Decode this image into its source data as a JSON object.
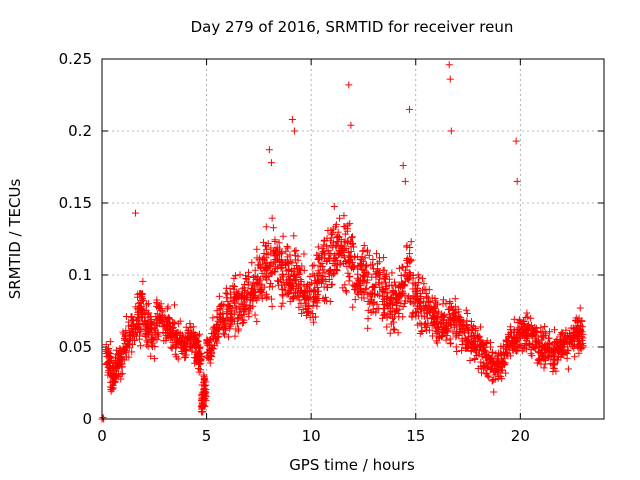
{
  "chart_data": {
    "type": "scatter",
    "title": "Day 279 of 2016, SRMTID for receiver reun",
    "xlabel": "GPS time / hours",
    "ylabel": "SRMTID / TECUs",
    "xlim": [
      0,
      24
    ],
    "ylim": [
      0,
      0.25
    ],
    "xticks": [
      0,
      5,
      10,
      15,
      20
    ],
    "yticks": [
      0,
      0.05,
      0.1,
      0.15,
      0.2,
      0.25
    ],
    "xtick_labels": [
      "0",
      "5",
      "10",
      "15",
      "20"
    ],
    "ytick_labels": [
      "0",
      "0.05",
      "0.1",
      "0.15",
      "0.2",
      "0.25"
    ],
    "grid": true,
    "marker": "plus",
    "color": "#ff0000",
    "series": [
      {
        "name": "SRMTID",
        "x": [
          0.0,
          0.05,
          0.08,
          0.2,
          0.4,
          0.6,
          0.8,
          1.0,
          1.3,
          1.6,
          1.8,
          2.0,
          2.3,
          2.6,
          2.9,
          3.2,
          3.5,
          3.8,
          4.1,
          4.4,
          4.6,
          4.75,
          4.85,
          5.0,
          5.3,
          5.6,
          5.9,
          6.2,
          6.5,
          6.8,
          7.1,
          7.4,
          7.7,
          8.0,
          8.3,
          8.6,
          8.9,
          9.1,
          9.4,
          9.7,
          10.0,
          10.3,
          10.6,
          10.9,
          11.2,
          11.5,
          11.8,
          12.1,
          12.4,
          12.7,
          13.0,
          13.3,
          13.6,
          13.9,
          14.2,
          14.5,
          14.8,
          15.1,
          15.4,
          15.7,
          16.0,
          16.3,
          16.6,
          16.9,
          17.2,
          17.5,
          17.8,
          18.1,
          18.4,
          18.7,
          19.0,
          19.3,
          19.6,
          19.9,
          20.2,
          20.5,
          20.8,
          21.1,
          21.4,
          21.7,
          22.0,
          22.3,
          22.6,
          22.8
        ],
        "y": [
          0.0,
          0.001,
          0.0,
          0.04,
          0.03,
          0.035,
          0.04,
          0.055,
          0.06,
          0.07,
          0.075,
          0.065,
          0.06,
          0.07,
          0.065,
          0.06,
          0.055,
          0.05,
          0.055,
          0.05,
          0.045,
          0.01,
          0.02,
          0.05,
          0.06,
          0.07,
          0.075,
          0.08,
          0.075,
          0.085,
          0.09,
          0.1,
          0.105,
          0.11,
          0.105,
          0.1,
          0.095,
          0.1,
          0.09,
          0.085,
          0.09,
          0.1,
          0.11,
          0.115,
          0.12,
          0.115,
          0.11,
          0.1,
          0.1,
          0.09,
          0.095,
          0.09,
          0.085,
          0.08,
          0.09,
          0.1,
          0.085,
          0.08,
          0.075,
          0.07,
          0.065,
          0.065,
          0.07,
          0.065,
          0.06,
          0.055,
          0.05,
          0.045,
          0.04,
          0.035,
          0.04,
          0.05,
          0.055,
          0.06,
          0.06,
          0.055,
          0.05,
          0.05,
          0.045,
          0.05,
          0.05,
          0.055,
          0.06,
          0.06
        ]
      }
    ],
    "outliers": {
      "x": [
        1.6,
        8.0,
        8.1,
        9.1,
        9.2,
        11.8,
        11.9,
        14.4,
        14.5,
        14.7,
        16.6,
        16.65,
        16.7,
        19.8,
        19.85
      ],
      "y": [
        0.143,
        0.187,
        0.178,
        0.208,
        0.2,
        0.232,
        0.204,
        0.176,
        0.165,
        0.215,
        0.246,
        0.236,
        0.2,
        0.193,
        0.165
      ]
    }
  }
}
